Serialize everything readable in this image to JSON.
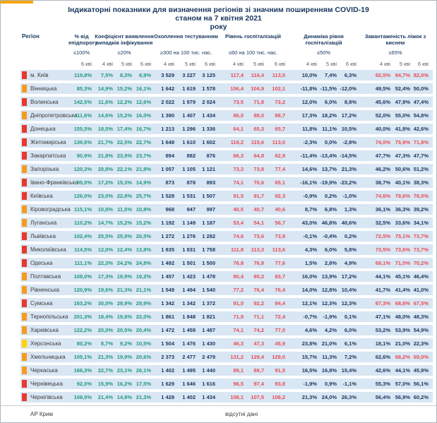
{
  "title": {
    "line1": "Індикаторні показники для визначення регіонів зі значним поширенням COVID-19",
    "line2": "станом на 7 квітня 2021",
    "line3": "року"
  },
  "header": {
    "region_label": "Регіон",
    "groups": [
      {
        "label": "% від епідпорогу",
        "threshold": "≤100%",
        "subs": [
          "6 кві"
        ]
      },
      {
        "label": "Коефіцієнт виявлення випадків інфікування",
        "threshold": "≤20%",
        "subs": [
          "4 кві",
          "5 кві",
          "6 кві"
        ]
      },
      {
        "label": "Охоплення тестуванням",
        "threshold": "≥300 на 100 тис. нас.",
        "subs": [
          "4 кві",
          "5 кві",
          "6 кві"
        ]
      },
      {
        "label": "Рівень госпіталізацій",
        "threshold": "≤60 на 100 тис. нас.",
        "subs": [
          "4 кві",
          "5 кві",
          "6 кві"
        ]
      },
      {
        "label": "Динаміка рівня госпіталізацій",
        "threshold": "≤50%",
        "subs": [
          "4 кві",
          "5 кві",
          "6 кві"
        ]
      },
      {
        "label": "Завантаженість ліжок з киснем",
        "threshold": "≤65%",
        "subs": [
          "4 кві",
          "5 кві",
          "6 кві"
        ]
      }
    ]
  },
  "rows": [
    {
      "region": "м. Київ",
      "marker": "red",
      "epid": "119,8%",
      "detect": [
        "7,5%",
        "8,3%",
        "8,9%"
      ],
      "testing": [
        "3 529",
        "3 227",
        "3 125"
      ],
      "hosp": [
        "117,4",
        "116,4",
        "113,5"
      ],
      "dynamics": [
        "10,0%",
        "7,4%",
        "6,3%"
      ],
      "beds": [
        "82,5%",
        "84,7%",
        "82,0%"
      ]
    },
    {
      "region": "Вінницька",
      "marker": "orange",
      "epid": "85,3%",
      "detect": [
        "14,9%",
        "15,2%",
        "16,1%"
      ],
      "testing": [
        "1 642",
        "1 619",
        "1 578"
      ],
      "hosp": [
        "106,4",
        "104,9",
        "102,1"
      ],
      "dynamics": [
        "-11,8%",
        "-11,5%",
        "-12,0%"
      ],
      "beds": [
        "49,5%",
        "52,4%",
        "50,0%"
      ]
    },
    {
      "region": "Волинська",
      "marker": "red",
      "epid": "142,5%",
      "detect": [
        "11,6%",
        "12,2%",
        "12,6%"
      ],
      "testing": [
        "2 022",
        "1 979",
        "2 024"
      ],
      "hosp": [
        "73,5",
        "71,8",
        "73,2"
      ],
      "dynamics": [
        "12,0%",
        "6,0%",
        "8,8%"
      ],
      "beds": [
        "45,6%",
        "47,9%",
        "47,4%"
      ]
    },
    {
      "region": "Дніпропетровська",
      "marker": "orange",
      "epid": "111,6%",
      "detect": [
        "14,6%",
        "15,2%",
        "16,0%"
      ],
      "testing": [
        "1 390",
        "1 407",
        "1 434"
      ],
      "hosp": [
        "86,0",
        "88,0",
        "88,7"
      ],
      "dynamics": [
        "17,3%",
        "18,2%",
        "17,2%"
      ],
      "beds": [
        "52,0%",
        "55,0%",
        "54,8%"
      ]
    },
    {
      "region": "Донецька",
      "marker": "red",
      "epid": "155,5%",
      "detect": [
        "18,5%",
        "17,4%",
        "16,7%"
      ],
      "testing": [
        "1 213",
        "1 296",
        "1 336"
      ],
      "hosp": [
        "64,1",
        "65,3",
        "65,7"
      ],
      "dynamics": [
        "11,8%",
        "11,1%",
        "10,5%"
      ],
      "beds": [
        "40,0%",
        "41,8%",
        "42,6%"
      ]
    },
    {
      "region": "Житомирська",
      "marker": "red",
      "epid": "139,6%",
      "detect": [
        "21,7%",
        "22,5%",
        "22,7%"
      ],
      "testing": [
        "1 648",
        "1 610",
        "1 602"
      ],
      "hosp": [
        "116,2",
        "115,6",
        "113,0"
      ],
      "dynamics": [
        "-2,3%",
        "0,0%",
        "-2,8%"
      ],
      "beds": [
        "74,0%",
        "75,9%",
        "71,8%"
      ]
    },
    {
      "region": "Закарпатська",
      "marker": "red",
      "epid": "90,9%",
      "detect": [
        "21,8%",
        "23,9%",
        "23,7%"
      ],
      "testing": [
        "894",
        "882",
        "876"
      ],
      "hosp": [
        "66,3",
        "64,8",
        "62,9"
      ],
      "dynamics": [
        "-11,4%",
        "-13,4%",
        "-14,5%"
      ],
      "beds": [
        "47,7%",
        "47,3%",
        "47,7%"
      ]
    },
    {
      "region": "Запорізька",
      "marker": "orange",
      "epid": "120,3%",
      "detect": [
        "20,8%",
        "22,1%",
        "21,8%"
      ],
      "testing": [
        "1 057",
        "1 105",
        "1 121"
      ],
      "hosp": [
        "73,3",
        "73,8",
        "77,4"
      ],
      "dynamics": [
        "14,6%",
        "13,7%",
        "21,3%"
      ],
      "beds": [
        "46,2%",
        "50,6%",
        "51,2%"
      ]
    },
    {
      "region": "Івано-Франківська",
      "marker": "red",
      "epid": "95,0%",
      "detect": [
        "17,2%",
        "15,3%",
        "14,9%"
      ],
      "testing": [
        "873",
        "878",
        "893"
      ],
      "hosp": [
        "74,1",
        "70,6",
        "65,1"
      ],
      "dynamics": [
        "-16,1%",
        "-19,9%",
        "-23,2%"
      ],
      "beds": [
        "38,7%",
        "40,1%",
        "38,3%"
      ]
    },
    {
      "region": "Київська",
      "marker": "red",
      "epid": "126,0%",
      "detect": [
        "23,0%",
        "22,8%",
        "25,7%"
      ],
      "testing": [
        "1 528",
        "1 531",
        "1 507"
      ],
      "hosp": [
        "91,5",
        "91,7",
        "92,3"
      ],
      "dynamics": [
        "-0,9%",
        "0,2%",
        "-1,0%"
      ],
      "beds": [
        "74,6%",
        "79,6%",
        "78,0%"
      ]
    },
    {
      "region": "Кіровоградська",
      "marker": "orange",
      "epid": "115,1%",
      "detect": [
        "10,8%",
        "11,5%",
        "10,8%"
      ],
      "testing": [
        "968",
        "947",
        "997"
      ],
      "hosp": [
        "40,5",
        "40,7",
        "40,6"
      ],
      "dynamics": [
        "8,7%",
        "6,8%",
        "1,3%"
      ],
      "beds": [
        "36,1%",
        "36,3%",
        "39,2%"
      ]
    },
    {
      "region": "Луганська",
      "marker": "orange",
      "epid": "110,2%",
      "detect": [
        "14,7%",
        "15,2%",
        "15,2%"
      ],
      "testing": [
        "1 192",
        "1 149",
        "1 187"
      ],
      "hosp": [
        "53,4",
        "54,1",
        "56,7"
      ],
      "dynamics": [
        "43,0%",
        "46,8%",
        "40,6%"
      ],
      "beds": [
        "32,5%",
        "33,6%",
        "34,1%"
      ]
    },
    {
      "region": "Львівська",
      "marker": "red",
      "epid": "102,4%",
      "detect": [
        "25,5%",
        "25,9%",
        "26,5%"
      ],
      "testing": [
        "1 272",
        "1 276",
        "1 282"
      ],
      "hosp": [
        "74,6",
        "73,6",
        "73,9"
      ],
      "dynamics": [
        "-0,1%",
        "-0,4%",
        "0,2%"
      ],
      "beds": [
        "72,5%",
        "75,1%",
        "73,7%"
      ]
    },
    {
      "region": "Миколаївська",
      "marker": "red",
      "epid": "114,5%",
      "detect": [
        "12,0%",
        "12,4%",
        "13,8%"
      ],
      "testing": [
        "1 835",
        "1 831",
        "1 758"
      ],
      "hosp": [
        "111,8",
        "113,3",
        "113,6"
      ],
      "dynamics": [
        "4,3%",
        "6,0%",
        "5,8%"
      ],
      "beds": [
        "73,5%",
        "73,6%",
        "73,7%"
      ]
    },
    {
      "region": "Одеська",
      "marker": "red",
      "epid": "111,1%",
      "detect": [
        "22,3%",
        "24,2%",
        "24,8%"
      ],
      "testing": [
        "1 492",
        "1 501",
        "1 500"
      ],
      "hosp": [
        "76,8",
        "76,9",
        "77,6"
      ],
      "dynamics": [
        "1,5%",
        "2,8%",
        "4,9%"
      ],
      "beds": [
        "69,1%",
        "71,0%",
        "70,2%"
      ]
    },
    {
      "region": "Полтавська",
      "marker": "orange",
      "epid": "108,0%",
      "detect": [
        "17,3%",
        "18,9%",
        "19,2%"
      ],
      "testing": [
        "1 457",
        "1 423",
        "1 478"
      ],
      "hosp": [
        "80,4",
        "80,2",
        "83,7"
      ],
      "dynamics": [
        "16,0%",
        "13,9%",
        "17,2%"
      ],
      "beds": [
        "44,1%",
        "45,1%",
        "46,4%"
      ]
    },
    {
      "region": "Рівненська",
      "marker": "orange",
      "epid": "120,9%",
      "detect": [
        "19,6%",
        "21,3%",
        "21,1%"
      ],
      "testing": [
        "1 549",
        "1 494",
        "1 540"
      ],
      "hosp": [
        "77,2",
        "76,4",
        "76,4"
      ],
      "dynamics": [
        "14,0%",
        "12,8%",
        "10,4%"
      ],
      "beds": [
        "41,7%",
        "41,4%",
        "41,0%"
      ]
    },
    {
      "region": "Сумська",
      "marker": "red",
      "epid": "163,2%",
      "detect": [
        "30,0%",
        "29,9%",
        "29,9%"
      ],
      "testing": [
        "1 342",
        "1 342",
        "1 372"
      ],
      "hosp": [
        "91,0",
        "92,2",
        "94,4"
      ],
      "dynamics": [
        "12,1%",
        "12,3%",
        "12,3%"
      ],
      "beds": [
        "67,3%",
        "68,8%",
        "67,5%"
      ]
    },
    {
      "region": "Тернопільська",
      "marker": "orange",
      "epid": "201,3%",
      "detect": [
        "18,4%",
        "19,8%",
        "22,0%"
      ],
      "testing": [
        "1 861",
        "1 848",
        "1 821"
      ],
      "hosp": [
        "71,9",
        "71,1",
        "72,4"
      ],
      "dynamics": [
        "-0,7%",
        "-1,9%",
        "0,1%"
      ],
      "beds": [
        "47,1%",
        "48,0%",
        "48,3%"
      ]
    },
    {
      "region": "Харківська",
      "marker": "orange",
      "epid": "122,2%",
      "detect": [
        "20,0%",
        "20,5%",
        "20,4%"
      ],
      "testing": [
        "1 472",
        "1 459",
        "1 487"
      ],
      "hosp": [
        "74,1",
        "74,2",
        "77,0"
      ],
      "dynamics": [
        "4,6%",
        "4,2%",
        "6,0%"
      ],
      "beds": [
        "53,2%",
        "53,9%",
        "54,9%"
      ]
    },
    {
      "region": "Херсонська",
      "marker": "yellow",
      "epid": "80,2%",
      "detect": [
        "8,7%",
        "9,2%",
        "10,5%"
      ],
      "testing": [
        "1 504",
        "1 476",
        "1 430"
      ],
      "hosp": [
        "46,3",
        "47,3",
        "45,9"
      ],
      "dynamics": [
        "23,8%",
        "21,0%",
        "6,1%"
      ],
      "beds": [
        "18,1%",
        "21,0%",
        "22,3%"
      ]
    },
    {
      "region": "Хмельницька",
      "marker": "orange",
      "epid": "105,1%",
      "detect": [
        "21,3%",
        "19,9%",
        "20,6%"
      ],
      "testing": [
        "2 373",
        "2 477",
        "2 479"
      ],
      "hosp": [
        "131,2",
        "129,4",
        "129,0"
      ],
      "dynamics": [
        "15,7%",
        "11,3%",
        "7,2%"
      ],
      "beds": [
        "62,6%",
        "68,2%",
        "69,0%"
      ]
    },
    {
      "region": "Черкаська",
      "marker": "orange",
      "epid": "166,3%",
      "detect": [
        "22,7%",
        "23,1%",
        "26,1%"
      ],
      "testing": [
        "1 402",
        "1 495",
        "1 440"
      ],
      "hosp": [
        "89,1",
        "89,7",
        "91,5"
      ],
      "dynamics": [
        "16,5%",
        "16,8%",
        "15,4%"
      ],
      "beds": [
        "42,6%",
        "44,1%",
        "45,9%"
      ]
    },
    {
      "region": "Чернівецька",
      "marker": "red",
      "epid": "92,0%",
      "detect": [
        "15,9%",
        "16,2%",
        "17,5%"
      ],
      "testing": [
        "1 629",
        "1 646",
        "1 616"
      ],
      "hosp": [
        "96,5",
        "97,4",
        "93,8"
      ],
      "dynamics": [
        "-1,9%",
        "0,9%",
        "-1,1%"
      ],
      "beds": [
        "55,3%",
        "57,0%",
        "56,1%"
      ]
    },
    {
      "region": "Чернігівська",
      "marker": "red",
      "epid": "108,0%",
      "detect": [
        "21,4%",
        "14,9%",
        "21,3%"
      ],
      "testing": [
        "1 428",
        "1 402",
        "1 434"
      ],
      "hosp": [
        "108,1",
        "107,5",
        "108,2"
      ],
      "dynamics": [
        "21,3%",
        "24,0%",
        "26,3%"
      ],
      "beds": [
        "56,4%",
        "56,9%",
        "60,2%"
      ]
    }
  ],
  "footer": {
    "region": "АР Крим",
    "note": "відсутні дані"
  },
  "beds_threshold": 65,
  "colors": {
    "teal": "#1F9A7E",
    "red": "#E94C56",
    "navy": "#17365D",
    "row_bg": "#D9E6F3",
    "accent": "#F7A600",
    "marker_red": "#E8392E",
    "marker_orange": "#F59B1F",
    "marker_yellow": "#FFD400"
  }
}
